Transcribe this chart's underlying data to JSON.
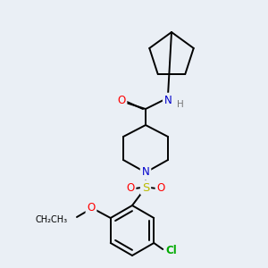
{
  "bg_color": "#eaeff5",
  "bond_color": "#000000",
  "atom_colors": {
    "O": "#ff0000",
    "N": "#0000cc",
    "S": "#bbbb00",
    "Cl": "#00aa00",
    "H": "#777777",
    "C": "#000000"
  },
  "font_size": 8.5,
  "line_width": 1.4
}
